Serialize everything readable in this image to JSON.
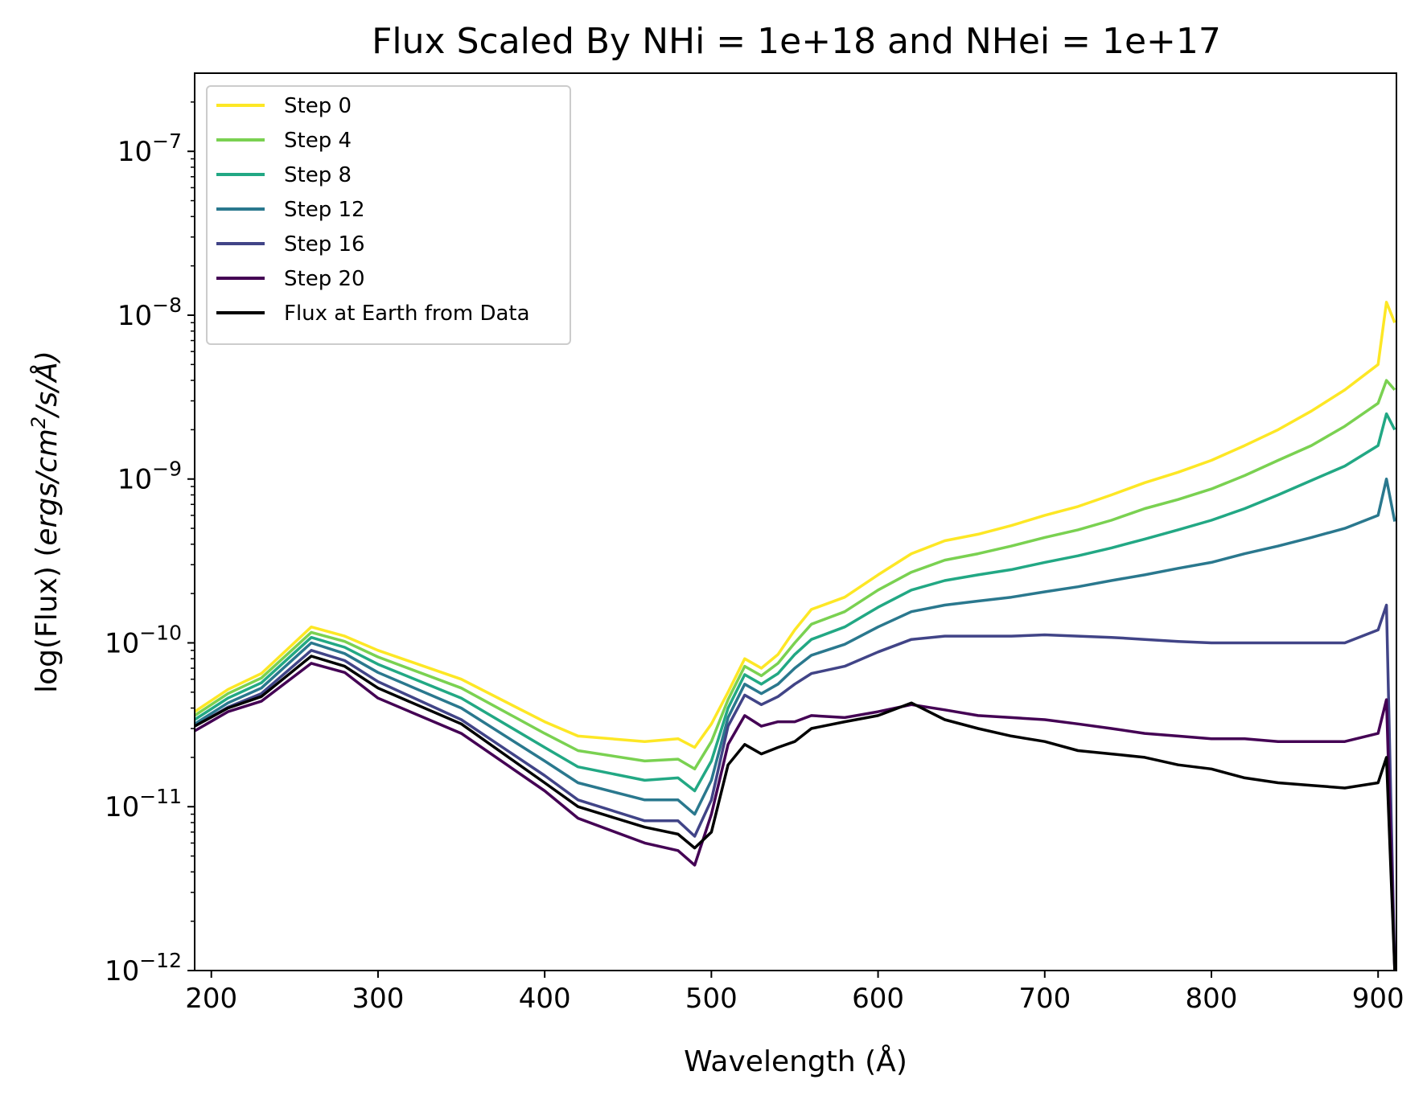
{
  "chart_data": {
    "type": "line",
    "title": "Flux Scaled By NHi = 1e+18 and NHei = 1e+17",
    "xlabel": "Wavelength (Å)",
    "ylabel": "log(Flux) (ergs/cm²/s/Å)",
    "ylabel_parts": {
      "prefix": "log(Flux) (",
      "unit": "ergs/cm",
      "sup": "2",
      "suffix": "/s/Å)"
    },
    "xscale": "linear",
    "yscale": "log",
    "xlim": [
      190,
      911
    ],
    "ylim": [
      1e-12,
      3e-07
    ],
    "x_ticks": [
      200,
      300,
      400,
      500,
      600,
      700,
      800,
      900
    ],
    "y_ticks": [
      {
        "value": 1e-12,
        "base": "10",
        "exp": "−12"
      },
      {
        "value": 1e-11,
        "base": "10",
        "exp": "−11"
      },
      {
        "value": 1e-10,
        "base": "10",
        "exp": "−10"
      },
      {
        "value": 1e-09,
        "base": "10",
        "exp": "−9"
      },
      {
        "value": 1e-08,
        "base": "10",
        "exp": "−8"
      },
      {
        "value": 1e-07,
        "base": "10",
        "exp": "−7"
      }
    ],
    "legend_position": "upper-left",
    "x": [
      190,
      210,
      230,
      260,
      280,
      300,
      350,
      400,
      420,
      460,
      480,
      490,
      500,
      510,
      520,
      530,
      540,
      550,
      560,
      580,
      600,
      620,
      640,
      660,
      680,
      700,
      720,
      740,
      760,
      780,
      800,
      820,
      840,
      860,
      880,
      900,
      905,
      910
    ],
    "series": [
      {
        "name": "Step 0",
        "color": "#fde725",
        "values": [
          3.8e-11,
          5.2e-11,
          6.5e-11,
          1.25e-10,
          1.1e-10,
          9e-11,
          6e-11,
          3.3e-11,
          2.7e-11,
          2.5e-11,
          2.6e-11,
          2.3e-11,
          3.2e-11,
          5e-11,
          8e-11,
          7e-11,
          8.5e-11,
          1.2e-10,
          1.6e-10,
          1.9e-10,
          2.6e-10,
          3.5e-10,
          4.2e-10,
          4.6e-10,
          5.2e-10,
          6e-10,
          6.8e-10,
          8e-10,
          9.5e-10,
          1.1e-09,
          1.3e-09,
          1.6e-09,
          2e-09,
          2.6e-09,
          3.5e-09,
          5e-09,
          1.2e-08,
          9e-09
        ]
      },
      {
        "name": "Step 4",
        "color": "#7ad151",
        "values": [
          3.6e-11,
          4.9e-11,
          6.1e-11,
          1.16e-10,
          1.02e-10,
          8.2e-11,
          5.3e-11,
          2.8e-11,
          2.2e-11,
          1.9e-11,
          1.95e-11,
          1.7e-11,
          2.5e-11,
          4.5e-11,
          7.2e-11,
          6.3e-11,
          7.5e-11,
          1e-10,
          1.3e-10,
          1.55e-10,
          2.1e-10,
          2.7e-10,
          3.2e-10,
          3.5e-10,
          3.9e-10,
          4.4e-10,
          4.9e-10,
          5.6e-10,
          6.6e-10,
          7.5e-10,
          8.7e-10,
          1.05e-09,
          1.3e-09,
          1.6e-09,
          2.1e-09,
          2.9e-09,
          4e-09,
          3.5e-09
        ]
      },
      {
        "name": "Step 8",
        "color": "#22a884",
        "values": [
          3.4e-11,
          4.6e-11,
          5.7e-11,
          1.08e-10,
          9.4e-11,
          7.4e-11,
          4.6e-11,
          2.3e-11,
          1.75e-11,
          1.45e-11,
          1.5e-11,
          1.25e-11,
          1.9e-11,
          4e-11,
          6.4e-11,
          5.6e-11,
          6.5e-11,
          8.5e-11,
          1.05e-10,
          1.25e-10,
          1.65e-10,
          2.1e-10,
          2.4e-10,
          2.6e-10,
          2.8e-10,
          3.1e-10,
          3.4e-10,
          3.8e-10,
          4.3e-10,
          4.9e-10,
          5.6e-10,
          6.6e-10,
          8e-10,
          9.8e-10,
          1.2e-09,
          1.6e-09,
          2.5e-09,
          2e-09
        ]
      },
      {
        "name": "Step 12",
        "color": "#2a788e",
        "values": [
          3.2e-11,
          4.3e-11,
          5.3e-11,
          1e-10,
          8.6e-11,
          6.6e-11,
          4e-11,
          1.9e-11,
          1.4e-11,
          1.1e-11,
          1.1e-11,
          9e-12,
          1.45e-11,
          3.5e-11,
          5.6e-11,
          4.9e-11,
          5.6e-11,
          7e-11,
          8.4e-11,
          9.8e-11,
          1.25e-10,
          1.55e-10,
          1.7e-10,
          1.8e-10,
          1.9e-10,
          2.05e-10,
          2.2e-10,
          2.4e-10,
          2.6e-10,
          2.85e-10,
          3.1e-10,
          3.5e-10,
          3.9e-10,
          4.4e-10,
          5e-10,
          6e-10,
          1e-09,
          5.5e-10
        ]
      },
      {
        "name": "Step 16",
        "color": "#414487",
        "values": [
          3.1e-11,
          4.05e-11,
          4.9e-11,
          9e-11,
          7.8e-11,
          5.8e-11,
          3.4e-11,
          1.55e-11,
          1.1e-11,
          8.2e-12,
          8.2e-12,
          6.6e-12,
          1.1e-11,
          3.1e-11,
          4.8e-11,
          4.2e-11,
          4.7e-11,
          5.6e-11,
          6.5e-11,
          7.2e-11,
          8.8e-11,
          1.05e-10,
          1.1e-10,
          1.1e-10,
          1.1e-10,
          1.12e-10,
          1.1e-10,
          1.08e-10,
          1.05e-10,
          1.02e-10,
          1e-10,
          1e-10,
          1e-10,
          1e-10,
          1e-10,
          1.2e-10,
          1.7e-10,
          1e-12
        ]
      },
      {
        "name": "Step 20",
        "color": "#440154",
        "values": [
          2.9e-11,
          3.8e-11,
          4.4e-11,
          7.5e-11,
          6.6e-11,
          4.6e-11,
          2.8e-11,
          1.25e-11,
          8.5e-12,
          6e-12,
          5.4e-12,
          4.4e-12,
          9e-12,
          2.4e-11,
          3.6e-11,
          3.1e-11,
          3.3e-11,
          3.3e-11,
          3.6e-11,
          3.5e-11,
          3.8e-11,
          4.2e-11,
          3.9e-11,
          3.6e-11,
          3.5e-11,
          3.4e-11,
          3.2e-11,
          3e-11,
          2.8e-11,
          2.7e-11,
          2.6e-11,
          2.6e-11,
          2.5e-11,
          2.5e-11,
          2.5e-11,
          2.8e-11,
          4.5e-11,
          1e-12
        ]
      },
      {
        "name": "Flux at Earth from Data",
        "color": "#000000",
        "values": [
          3.1e-11,
          4e-11,
          4.7e-11,
          8.3e-11,
          7.2e-11,
          5.3e-11,
          3.2e-11,
          1.4e-11,
          1e-11,
          7.5e-12,
          6.8e-12,
          5.6e-12,
          7e-12,
          1.8e-11,
          2.4e-11,
          2.1e-11,
          2.3e-11,
          2.5e-11,
          3e-11,
          3.3e-11,
          3.6e-11,
          4.3e-11,
          3.4e-11,
          3e-11,
          2.7e-11,
          2.5e-11,
          2.2e-11,
          2.1e-11,
          2e-11,
          1.8e-11,
          1.7e-11,
          1.5e-11,
          1.4e-11,
          1.35e-11,
          1.3e-11,
          1.4e-11,
          2e-11,
          1e-12
        ]
      }
    ]
  }
}
